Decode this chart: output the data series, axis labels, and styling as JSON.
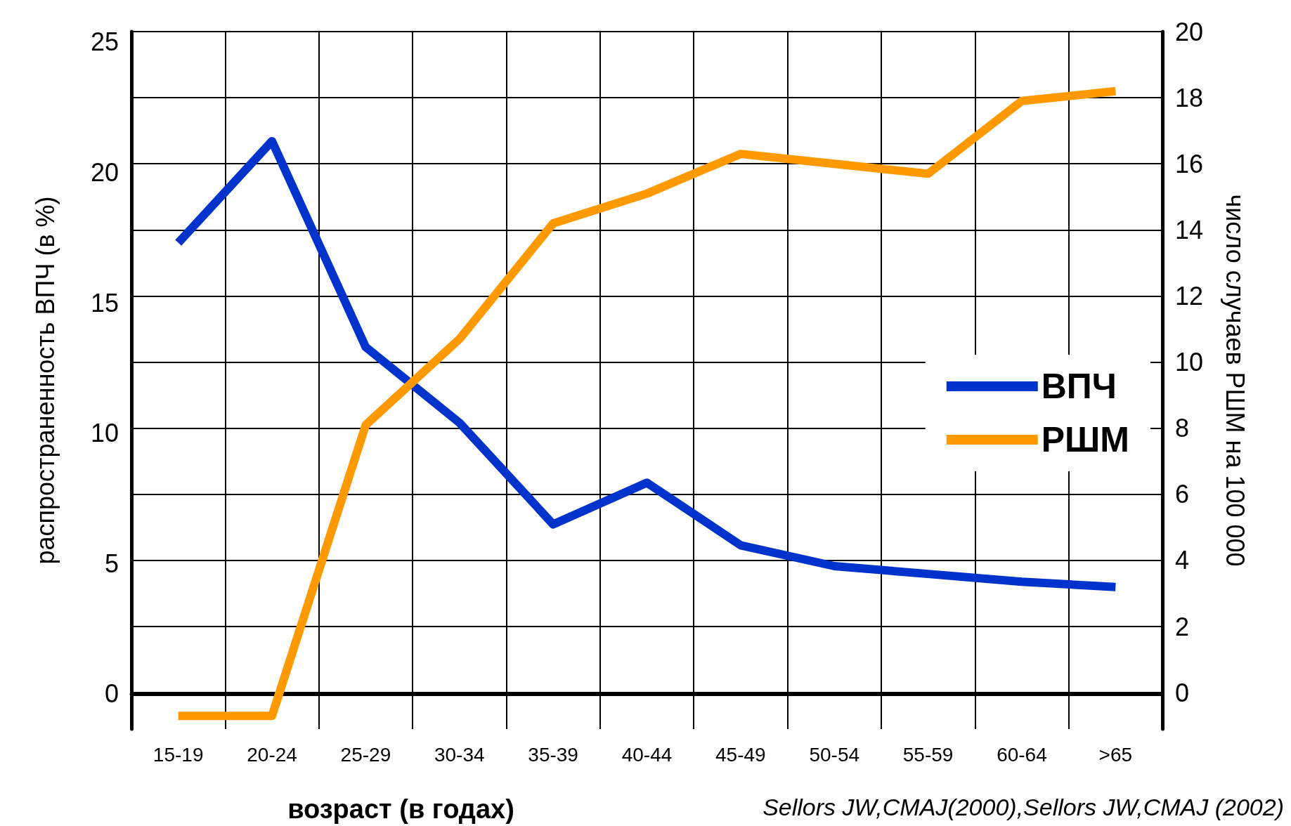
{
  "chart_data": {
    "type": "line",
    "xlabel": "возраст (в годах)",
    "ylabel": "распространенность ВПЧ (в %)",
    "y2label": "число случаев РШМ на 100 000",
    "categories": [
      "15-19",
      "20-24",
      "25-29",
      "30-34",
      "35-39",
      "40-44",
      "45-49",
      "50-54",
      "55-59",
      "60-64",
      ">65"
    ],
    "series": [
      {
        "name": "ВПЧ",
        "color": "#0033cc",
        "values": [
          17.3,
          21.2,
          13.3,
          10.4,
          6.5,
          8.1,
          5.7,
          4.9,
          4.6,
          4.3,
          4.1
        ]
      },
      {
        "name": "РШМ",
        "color": "#ff9900",
        "axis": "y2",
        "values": [
          -0.7,
          -0.7,
          8.1,
          10.7,
          14.2,
          15.1,
          16.3,
          16.0,
          15.7,
          17.9,
          18.2
        ]
      }
    ],
    "ylim": [
      -1.35,
      25.4
    ],
    "yticks": [
      0,
      5,
      10,
      15,
      20,
      25
    ],
    "y2lim": [
      -1.1,
      20
    ],
    "y2ticks": [
      0,
      2,
      4,
      6,
      8,
      10,
      12,
      14,
      16,
      18,
      20
    ],
    "grid": true,
    "legend": "right",
    "marker": "none",
    "line_style": "solid",
    "annotations": [
      "Sellors JW,CMAJ(2000),Sellors JW,CMAJ (2002)"
    ]
  }
}
